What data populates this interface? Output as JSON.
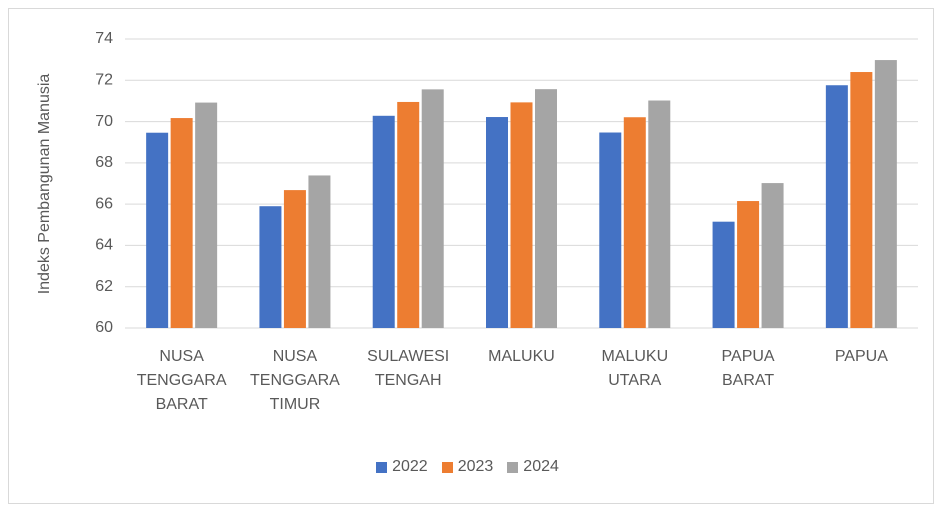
{
  "chart_data": {
    "type": "bar",
    "y_label": "Indeks Pembangunan Manusia",
    "categories": [
      "NUSA TENGGARA BARAT",
      "NUSA TENGGARA TIMUR",
      "SULAWESI TENGAH",
      "MALUKU",
      "MALUKU UTARA",
      "PAPUA BARAT",
      "PAPUA"
    ],
    "series": [
      {
        "name": "2022",
        "color": "#4472c4",
        "values": [
          69.46,
          65.9,
          70.28,
          70.22,
          69.47,
          65.15,
          71.76
        ]
      },
      {
        "name": "2023",
        "color": "#ed7d31",
        "values": [
          70.17,
          66.68,
          70.95,
          70.93,
          70.21,
          66.15,
          72.4
        ]
      },
      {
        "name": "2024",
        "color": "#a5a5a5",
        "values": [
          70.92,
          67.39,
          71.56,
          71.57,
          71.02,
          67.02,
          72.98
        ]
      }
    ],
    "ylim": [
      60,
      74
    ],
    "yticks": [
      60,
      62,
      64,
      66,
      68,
      70,
      72,
      74
    ],
    "grid": true,
    "legend": "bottom"
  }
}
